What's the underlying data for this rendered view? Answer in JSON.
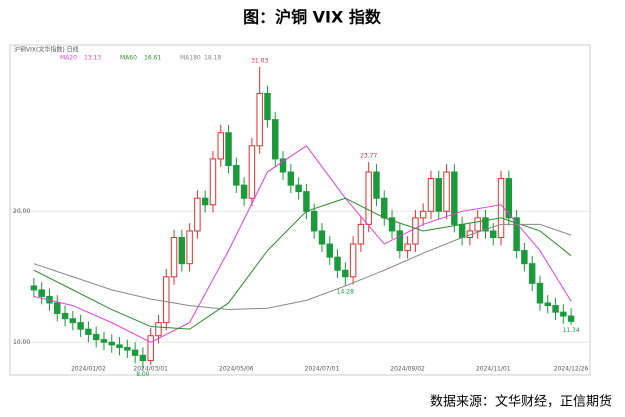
{
  "chart_data": {
    "type": "candlestick",
    "title": "图：沪铜 VIX 指数",
    "subtitle": "沪铜VIX(文华指数) 日线",
    "source": "数据来源：文华财经，正信期货",
    "categories": [
      null,
      null,
      null,
      null,
      null,
      null,
      null,
      "2024/01/02",
      null,
      null,
      null,
      null,
      null,
      null,
      null,
      "2024/03/01",
      null,
      null,
      null,
      null,
      null,
      null,
      null,
      null,
      null,
      null,
      "2024/05/06",
      null,
      null,
      null,
      null,
      null,
      null,
      null,
      null,
      null,
      null,
      "2024/07/01",
      null,
      null,
      null,
      null,
      null,
      null,
      null,
      null,
      null,
      null,
      "2024/09/02",
      null,
      null,
      null,
      null,
      null,
      null,
      null,
      null,
      null,
      null,
      "2024/11/01",
      null,
      null,
      null,
      null,
      null,
      null,
      null,
      null,
      null,
      "2024/12/26"
    ],
    "open": [
      14.3,
      14.0,
      13.5,
      13.0,
      12.2,
      11.8,
      11.5,
      11.0,
      10.6,
      10.2,
      10.0,
      9.8,
      9.6,
      9.4,
      9.0,
      8.6,
      10.5,
      11.5,
      15.0,
      18.0,
      16.0,
      18.5,
      21.0,
      20.5,
      24.0,
      26.0,
      23.5,
      22.0,
      21.0,
      25.0,
      29.0,
      27.0,
      24.0,
      23.0,
      22.0,
      21.5,
      20.0,
      18.5,
      17.5,
      16.5,
      15.5,
      15.0,
      17.5,
      19.0,
      23.0,
      21.0,
      19.5,
      18.5,
      17.0,
      17.5,
      19.5,
      20.0,
      22.5,
      20.0,
      23.0,
      19.0,
      18.0,
      18.5,
      19.5,
      18.5,
      18.0,
      22.5,
      19.5,
      17.0,
      16.0,
      14.5,
      13.0,
      12.8,
      12.3,
      12.0
    ],
    "high": [
      14.9,
      14.6,
      14.1,
      13.6,
      12.8,
      12.4,
      12.1,
      11.6,
      11.2,
      10.8,
      10.6,
      10.4,
      10.2,
      10.0,
      9.6,
      11.1,
      12.1,
      15.6,
      18.6,
      18.6,
      19.1,
      21.6,
      21.6,
      24.6,
      26.6,
      26.6,
      24.1,
      22.6,
      25.6,
      31.03,
      29.6,
      27.6,
      24.6,
      23.6,
      22.6,
      22.1,
      20.6,
      19.1,
      18.1,
      17.1,
      16.1,
      18.1,
      19.6,
      23.77,
      23.6,
      21.6,
      20.1,
      19.1,
      18.1,
      20.1,
      20.6,
      23.1,
      23.1,
      23.6,
      23.6,
      19.6,
      19.1,
      20.1,
      20.1,
      19.1,
      23.1,
      23.1,
      20.1,
      17.6,
      16.6,
      15.1,
      13.6,
      13.4,
      12.9,
      12.6
    ],
    "low": [
      13.4,
      12.9,
      12.4,
      11.6,
      11.2,
      10.9,
      10.4,
      10.0,
      9.6,
      9.4,
      9.2,
      9.0,
      8.8,
      8.4,
      8,
      8.3,
      9.9,
      10.9,
      14.4,
      15.4,
      15.4,
      17.9,
      19.9,
      19.9,
      23.4,
      22.9,
      21.4,
      20.4,
      20.4,
      24.4,
      26.4,
      23.4,
      22.4,
      21.4,
      20.9,
      19.4,
      17.9,
      16.9,
      15.9,
      14.9,
      14.28,
      14.4,
      16.9,
      18.4,
      20.4,
      18.9,
      17.9,
      16.4,
      16.4,
      16.9,
      18.9,
      19.4,
      19.4,
      19.4,
      18.4,
      17.4,
      17.4,
      17.9,
      17.9,
      17.4,
      17.4,
      18.9,
      16.4,
      15.4,
      13.9,
      12.4,
      12.2,
      11.7,
      11.4,
      11.34
    ],
    "close": [
      14.0,
      13.5,
      13.0,
      12.2,
      11.8,
      11.5,
      11.0,
      10.6,
      10.2,
      10.0,
      9.8,
      9.6,
      9.4,
      9.0,
      8.6,
      10.5,
      11.5,
      15.0,
      18.0,
      16.0,
      18.5,
      21.0,
      20.5,
      24.0,
      26.0,
      23.5,
      22.0,
      21.0,
      25.0,
      29.0,
      27.0,
      24.0,
      23.0,
      22.0,
      21.5,
      20.0,
      18.5,
      17.5,
      16.5,
      15.5,
      15.0,
      17.5,
      19.0,
      23.0,
      21.0,
      19.5,
      18.5,
      17.0,
      17.5,
      19.5,
      20.0,
      22.5,
      20.0,
      23.0,
      19.0,
      18.0,
      18.5,
      19.5,
      18.5,
      18.0,
      22.5,
      19.5,
      17.0,
      16.0,
      14.5,
      13.0,
      12.8,
      12.3,
      12.0,
      11.6
    ],
    "up_color": "#e03030",
    "down_color": "#1a9a3a",
    "x": [
      0,
      5,
      10,
      15,
      20,
      25,
      30,
      35,
      40,
      45,
      50,
      55,
      60,
      65,
      69
    ],
    "series": [
      {
        "name": "MA20",
        "color": "#e040e0",
        "values": [
          13.5,
          12.8,
          11.5,
          10.0,
          11.5,
          17,
          23,
          25,
          21,
          17.5,
          19,
          20,
          20.5,
          17,
          13.13
        ]
      },
      {
        "name": "MA60",
        "color": "#2e8b2e",
        "values": [
          15.5,
          14,
          12.5,
          11.2,
          11,
          13,
          17,
          20,
          21,
          19.5,
          18.5,
          19,
          19.5,
          18.5,
          16.61
        ]
      },
      {
        "name": "MA180",
        "color": "#888888",
        "values": [
          16,
          15,
          14,
          13.3,
          12.8,
          12.5,
          12.6,
          13.2,
          14.3,
          15.5,
          16.8,
          18,
          19,
          19,
          18.18
        ]
      }
    ],
    "annotations": [
      31.03,
      23.77,
      14.28,
      {
        "value": 8,
        "label": "8.00"
      },
      11.34
    ],
    "ylim": [
      7.5,
      32.7
    ],
    "yticks": [
      {
        "value": 10,
        "label": "10.00"
      },
      {
        "value": 20,
        "label": "20.00"
      }
    ],
    "grid": true
  }
}
